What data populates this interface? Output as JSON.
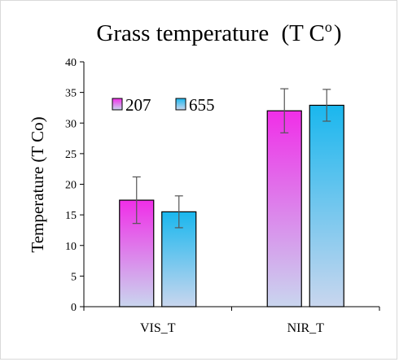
{
  "chart_data": {
    "type": "bar",
    "title": "Grass temperature",
    "title_unit_base": "(T C",
    "title_unit_sup": "o",
    "title_unit_close": ")",
    "ylabel": "Temperature (T Co)",
    "xlabel": "",
    "categories": [
      "VIS_T",
      "NIR_T"
    ],
    "ylim": [
      0,
      40
    ],
    "yticks": [
      "0",
      "5",
      "10",
      "15",
      "20",
      "25",
      "30",
      "35",
      "40"
    ],
    "grid": false,
    "legend_position": "top-left",
    "series": [
      {
        "name": "207",
        "values": [
          17.4,
          32.0
        ],
        "errors": [
          3.8,
          3.6
        ],
        "color_top": "#f02ee8",
        "color_bottom": "#c9d6ee"
      },
      {
        "name": "655",
        "values": [
          15.5,
          32.9
        ],
        "errors": [
          2.6,
          2.6
        ],
        "color_top": "#1ab7ee",
        "color_bottom": "#c9d6ee"
      }
    ]
  }
}
